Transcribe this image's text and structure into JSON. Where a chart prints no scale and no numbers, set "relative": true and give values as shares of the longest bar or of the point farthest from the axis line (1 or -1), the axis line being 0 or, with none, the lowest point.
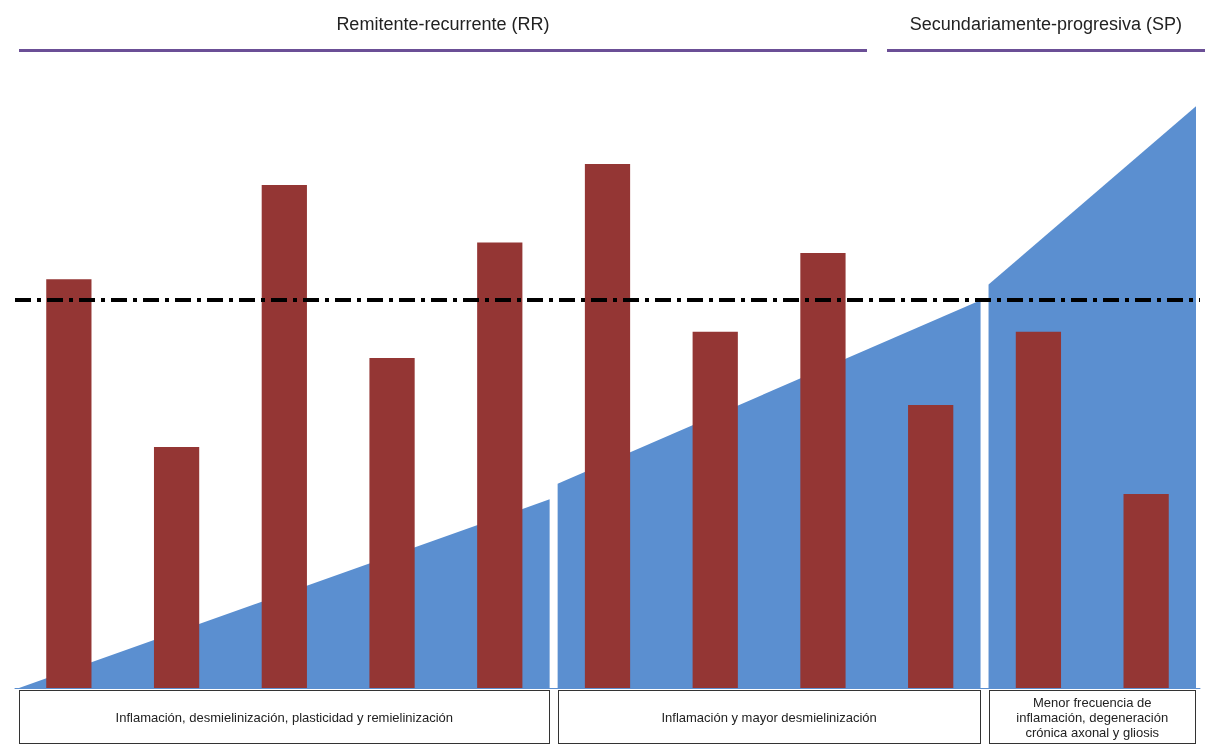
{
  "chart_data": {
    "type": "bar",
    "relative": true,
    "categories": [
      null,
      null,
      null,
      null,
      null,
      null,
      null,
      null,
      null,
      null,
      null
    ],
    "series": [
      {
        "color": "#943634",
        "values": [
          0.78,
          0.46,
          0.96,
          0.63,
          0.85,
          1,
          0.68,
          0.83,
          0.54,
          0.68,
          0.37
        ]
      }
    ],
    "ref_lines": [
      {
        "axis": "y",
        "value": 0.74,
        "color": "#000000",
        "line_style": "dashdot"
      }
    ],
    "annotations": [
      "Remitente-recurrente (RR)",
      "Secundariamente-progresiva (SP)",
      "Inflamación, desmielinización, plasticidad y remielinización",
      "Inflamación y mayor desmielinización",
      "Menor frecuencia de inflamación, degeneración crónica axonal y gliosis"
    ]
  }
}
